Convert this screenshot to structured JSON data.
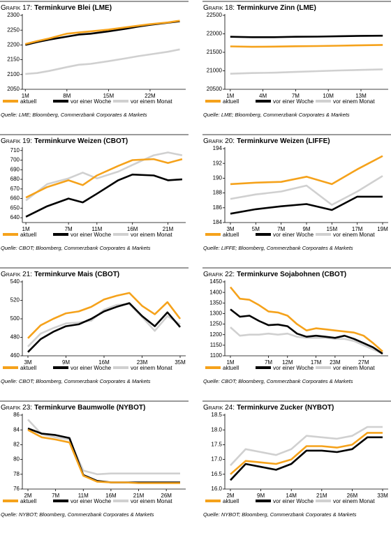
{
  "chart_data": [
    {
      "type": "line",
      "label": "Grafik 17:",
      "title": "Terminkurve Blei (LME)",
      "source": "Quelle: LME; Bloomberg, Commerzbank Corporates & Markets",
      "x": [
        1,
        3,
        5,
        8,
        10,
        12,
        15,
        18,
        20,
        22,
        25,
        27
      ],
      "xlim": [
        0.5,
        28
      ],
      "xticks": [
        {
          "value": 1,
          "label": "1M"
        },
        {
          "value": 8,
          "label": "8M"
        },
        {
          "value": 15,
          "label": "15M"
        },
        {
          "value": 22,
          "label": "22M"
        }
      ],
      "ylim": [
        2050,
        2300
      ],
      "yticks": [
        2050,
        2100,
        2150,
        2200,
        2250,
        2300
      ],
      "series": [
        {
          "name": "aktuell",
          "color": "#f5a21b",
          "values": [
            2203,
            2213,
            2222,
            2238,
            2242,
            2246,
            2252,
            2260,
            2265,
            2270,
            2276,
            2282
          ]
        },
        {
          "name": "vor einer Woche",
          "color": "#000000",
          "values": [
            2200,
            2210,
            2218,
            2228,
            2235,
            2238,
            2246,
            2255,
            2262,
            2268,
            2275,
            2280
          ]
        },
        {
          "name": "vor einem Monat",
          "color": "#d0d0d0",
          "values": [
            2102,
            2105,
            2112,
            2125,
            2133,
            2136,
            2145,
            2155,
            2162,
            2168,
            2177,
            2185
          ]
        }
      ]
    },
    {
      "type": "line",
      "label": "Grafik 18:",
      "title": "Terminkurve Zinn (LME)",
      "source": "Quelle: LME; Bloomberg, Commerzbank Corporates & Markets",
      "x": [
        1,
        3,
        5,
        7,
        9,
        11,
        13,
        15
      ],
      "xlim": [
        0.5,
        15.5
      ],
      "xticks": [
        {
          "value": 1,
          "label": "1M"
        },
        {
          "value": 4,
          "label": "4M"
        },
        {
          "value": 7,
          "label": "7M"
        },
        {
          "value": 10,
          "label": "10M"
        },
        {
          "value": 13,
          "label": "13M"
        }
      ],
      "ylim": [
        20500,
        22500
      ],
      "yticks": [
        20500,
        21000,
        21500,
        22000,
        22500
      ],
      "series": [
        {
          "name": "aktuell",
          "color": "#f5a21b",
          "values": [
            21660,
            21650,
            21655,
            21665,
            21670,
            21680,
            21690,
            21700
          ]
        },
        {
          "name": "vor einer Woche",
          "color": "#000000",
          "values": [
            21920,
            21910,
            21910,
            21920,
            21925,
            21935,
            21945,
            21950
          ]
        },
        {
          "name": "vor einem Monat",
          "color": "#d0d0d0",
          "values": [
            20920,
            20940,
            20950,
            20970,
            20990,
            21010,
            21025,
            21040
          ]
        }
      ]
    },
    {
      "type": "line",
      "label": "Grafik 19:",
      "title": "Terminkurve Weizen (CBOT)",
      "source": "Quelle: CBOT; Bloomberg, Commerzbank Corporates & Markets",
      "x": [
        1,
        4,
        7,
        9,
        11,
        14,
        16,
        19,
        21,
        23
      ],
      "xlim": [
        0.5,
        23.5
      ],
      "xticks": [
        {
          "value": 1,
          "label": "1M"
        },
        {
          "value": 7,
          "label": "7M"
        },
        {
          "value": 11,
          "label": "11M"
        },
        {
          "value": 16,
          "label": "16M"
        },
        {
          "value": 21,
          "label": "21M"
        }
      ],
      "ylim": [
        635,
        712
      ],
      "yticks": [
        640,
        650,
        660,
        670,
        680,
        690,
        700,
        710
      ],
      "series": [
        {
          "name": "aktuell",
          "color": "#f5a21b",
          "values": [
            661,
            672,
            679,
            674,
            684,
            694,
            700,
            701,
            697,
            701
          ]
        },
        {
          "name": "vor einer Woche",
          "color": "#000000",
          "values": [
            641,
            652,
            660,
            656,
            665,
            679,
            685,
            684,
            679,
            680
          ]
        },
        {
          "name": "vor einem Monat",
          "color": "#d0d0d0",
          "values": [
            658,
            675,
            681,
            687,
            681,
            688,
            695,
            705,
            708,
            705
          ]
        }
      ]
    },
    {
      "type": "line",
      "label": "Grafik 20:",
      "title": "Terminkurve Weizen (LIFFE)",
      "source": "Quelle: LIFFE; Bloomberg, Commerzbank Corporates & Markets",
      "categories": [
        "3M",
        "5M",
        "7M",
        "9M",
        "15M",
        "17M",
        "19M"
      ],
      "ylim": [
        184,
        194
      ],
      "yticks": [
        184,
        186,
        188,
        190,
        192,
        194
      ],
      "series": [
        {
          "name": "aktuell",
          "color": "#f5a21b",
          "values": [
            189.2,
            189.4,
            189.5,
            190.2,
            189.2,
            191.2,
            193.0
          ]
        },
        {
          "name": "vor einer Woche",
          "color": "#000000",
          "values": [
            185.2,
            185.8,
            186.2,
            186.5,
            185.7,
            187.5,
            187.5
          ]
        },
        {
          "name": "vor einem Monat",
          "color": "#d0d0d0",
          "values": [
            187.2,
            187.8,
            188.2,
            189.0,
            186.4,
            188.2,
            190.3
          ]
        }
      ]
    },
    {
      "type": "line",
      "label": "Grafik 21:",
      "title": "Terminkurve Mais (CBOT)",
      "source": "Quelle: CBOT; Bloomberg, Commerzbank Corporates & Markets",
      "categories": [
        "3M",
        null,
        null,
        "9M",
        null,
        null,
        "16M",
        null,
        null,
        "23M",
        null,
        null,
        "35M"
      ],
      "ylim": [
        460,
        540
      ],
      "yticks": [
        460,
        480,
        500,
        520,
        540
      ],
      "series": [
        {
          "name": "aktuell",
          "color": "#f5a21b",
          "values": [
            479,
            493,
            500,
            506,
            508,
            513,
            521,
            525,
            528,
            514,
            505,
            518,
            500
          ]
        },
        {
          "name": "vor einer Woche",
          "color": "#000000",
          "values": [
            464,
            478,
            486,
            492,
            494,
            500,
            508,
            513,
            517,
            503,
            492,
            507,
            491
          ]
        },
        {
          "name": "vor einem Monat",
          "color": "#d0d0d0",
          "values": [
            470,
            484,
            490,
            495,
            496,
            498,
            510,
            515,
            516,
            502,
            487,
            503,
            494
          ]
        }
      ]
    },
    {
      "type": "line",
      "label": "Grafik 22:",
      "title": "Terminkurve Sojabohnen (CBOT)",
      "source": "Quelle: CBOT; Bloomberg, Commerzbank Corporates & Markets",
      "categories": [
        "1M",
        null,
        null,
        null,
        "7M",
        null,
        "12M",
        null,
        null,
        "17M",
        null,
        "23M",
        null,
        null,
        "27M",
        null,
        null
      ],
      "ylim": [
        1100,
        1450
      ],
      "yticks": [
        1100,
        1150,
        1200,
        1250,
        1300,
        1350,
        1400,
        1450
      ],
      "series": [
        {
          "name": "aktuell",
          "color": "#f5a21b",
          "values": [
            1425,
            1370,
            1365,
            1340,
            1310,
            1305,
            1290,
            1250,
            1220,
            1230,
            1225,
            1220,
            1215,
            1210,
            1195,
            1160,
            1120
          ]
        },
        {
          "name": "vor einer Woche",
          "color": "#000000",
          "values": [
            1320,
            1285,
            1290,
            1265,
            1245,
            1248,
            1240,
            1205,
            1190,
            1195,
            1190,
            1185,
            1195,
            1180,
            1160,
            1140,
            1110
          ]
        },
        {
          "name": "vor einem Monat",
          "color": "#d0d0d0",
          "values": [
            1235,
            1195,
            1200,
            1200,
            1205,
            1200,
            1205,
            1190,
            1185,
            1185,
            1185,
            1180,
            1180,
            1170,
            1150,
            1130,
            1110
          ]
        }
      ]
    },
    {
      "type": "line",
      "label": "Grafik 23:",
      "title": "Terminkurve Baumwolle (NYBOT)",
      "source": "Quelle: NYBOT; Bloomberg, Commerzbank Corporates & Markets",
      "categories": [
        "2M",
        null,
        "7M",
        null,
        "11M",
        null,
        "16M",
        null,
        "21M",
        null,
        "26M",
        null
      ],
      "ylim": [
        76,
        86
      ],
      "yticks": [
        76,
        78,
        80,
        82,
        84,
        86
      ],
      "series": [
        {
          "name": "aktuell",
          "color": "#f5a21b",
          "values": [
            84.0,
            83.0,
            82.7,
            82.3,
            77.8,
            77.0,
            76.9,
            76.9,
            76.8,
            76.8,
            76.8,
            76.8
          ]
        },
        {
          "name": "vor einer Woche",
          "color": "#000000",
          "values": [
            84.2,
            83.5,
            83.3,
            82.9,
            77.9,
            77.1,
            76.9,
            76.9,
            76.9,
            76.9,
            76.9,
            76.9
          ]
        },
        {
          "name": "vor einem Monat",
          "color": "#d0d0d0",
          "values": [
            85.4,
            83.4,
            83.0,
            82.7,
            78.5,
            78.0,
            78.1,
            78.1,
            78.1,
            78.1,
            78.1,
            78.1
          ]
        }
      ]
    },
    {
      "type": "line",
      "label": "Grafik 24:",
      "title": "Terminkurve Zucker (NYBOT)",
      "source": "Quelle: NYBOT; Bloomberg, Commerzbank Corporates & Markets",
      "categories": [
        "2M",
        null,
        "9M",
        null,
        "14M",
        null,
        "21M",
        null,
        "26M",
        null,
        "33M"
      ],
      "ylim": [
        16,
        18.5
      ],
      "yticks": [
        {
          "value": 16,
          "label": "16.0"
        },
        16.5,
        {
          "value": 17,
          "label": "17.0"
        },
        17.5,
        {
          "value": 18,
          "label": "18.0"
        },
        18.5
      ],
      "series": [
        {
          "name": "aktuell",
          "color": "#f5a21b",
          "values": [
            16.5,
            16.95,
            16.9,
            16.85,
            17.0,
            17.45,
            17.45,
            17.4,
            17.5,
            17.9,
            17.9
          ]
        },
        {
          "name": "vor einer Woche",
          "color": "#000000",
          "values": [
            16.3,
            16.85,
            16.75,
            16.65,
            16.85,
            17.3,
            17.3,
            17.25,
            17.35,
            17.75,
            17.75
          ]
        },
        {
          "name": "vor einem Monat",
          "color": "#d0d0d0",
          "values": [
            16.8,
            17.35,
            17.25,
            17.15,
            17.35,
            17.8,
            17.75,
            17.7,
            17.8,
            18.1,
            18.1
          ]
        }
      ]
    }
  ]
}
